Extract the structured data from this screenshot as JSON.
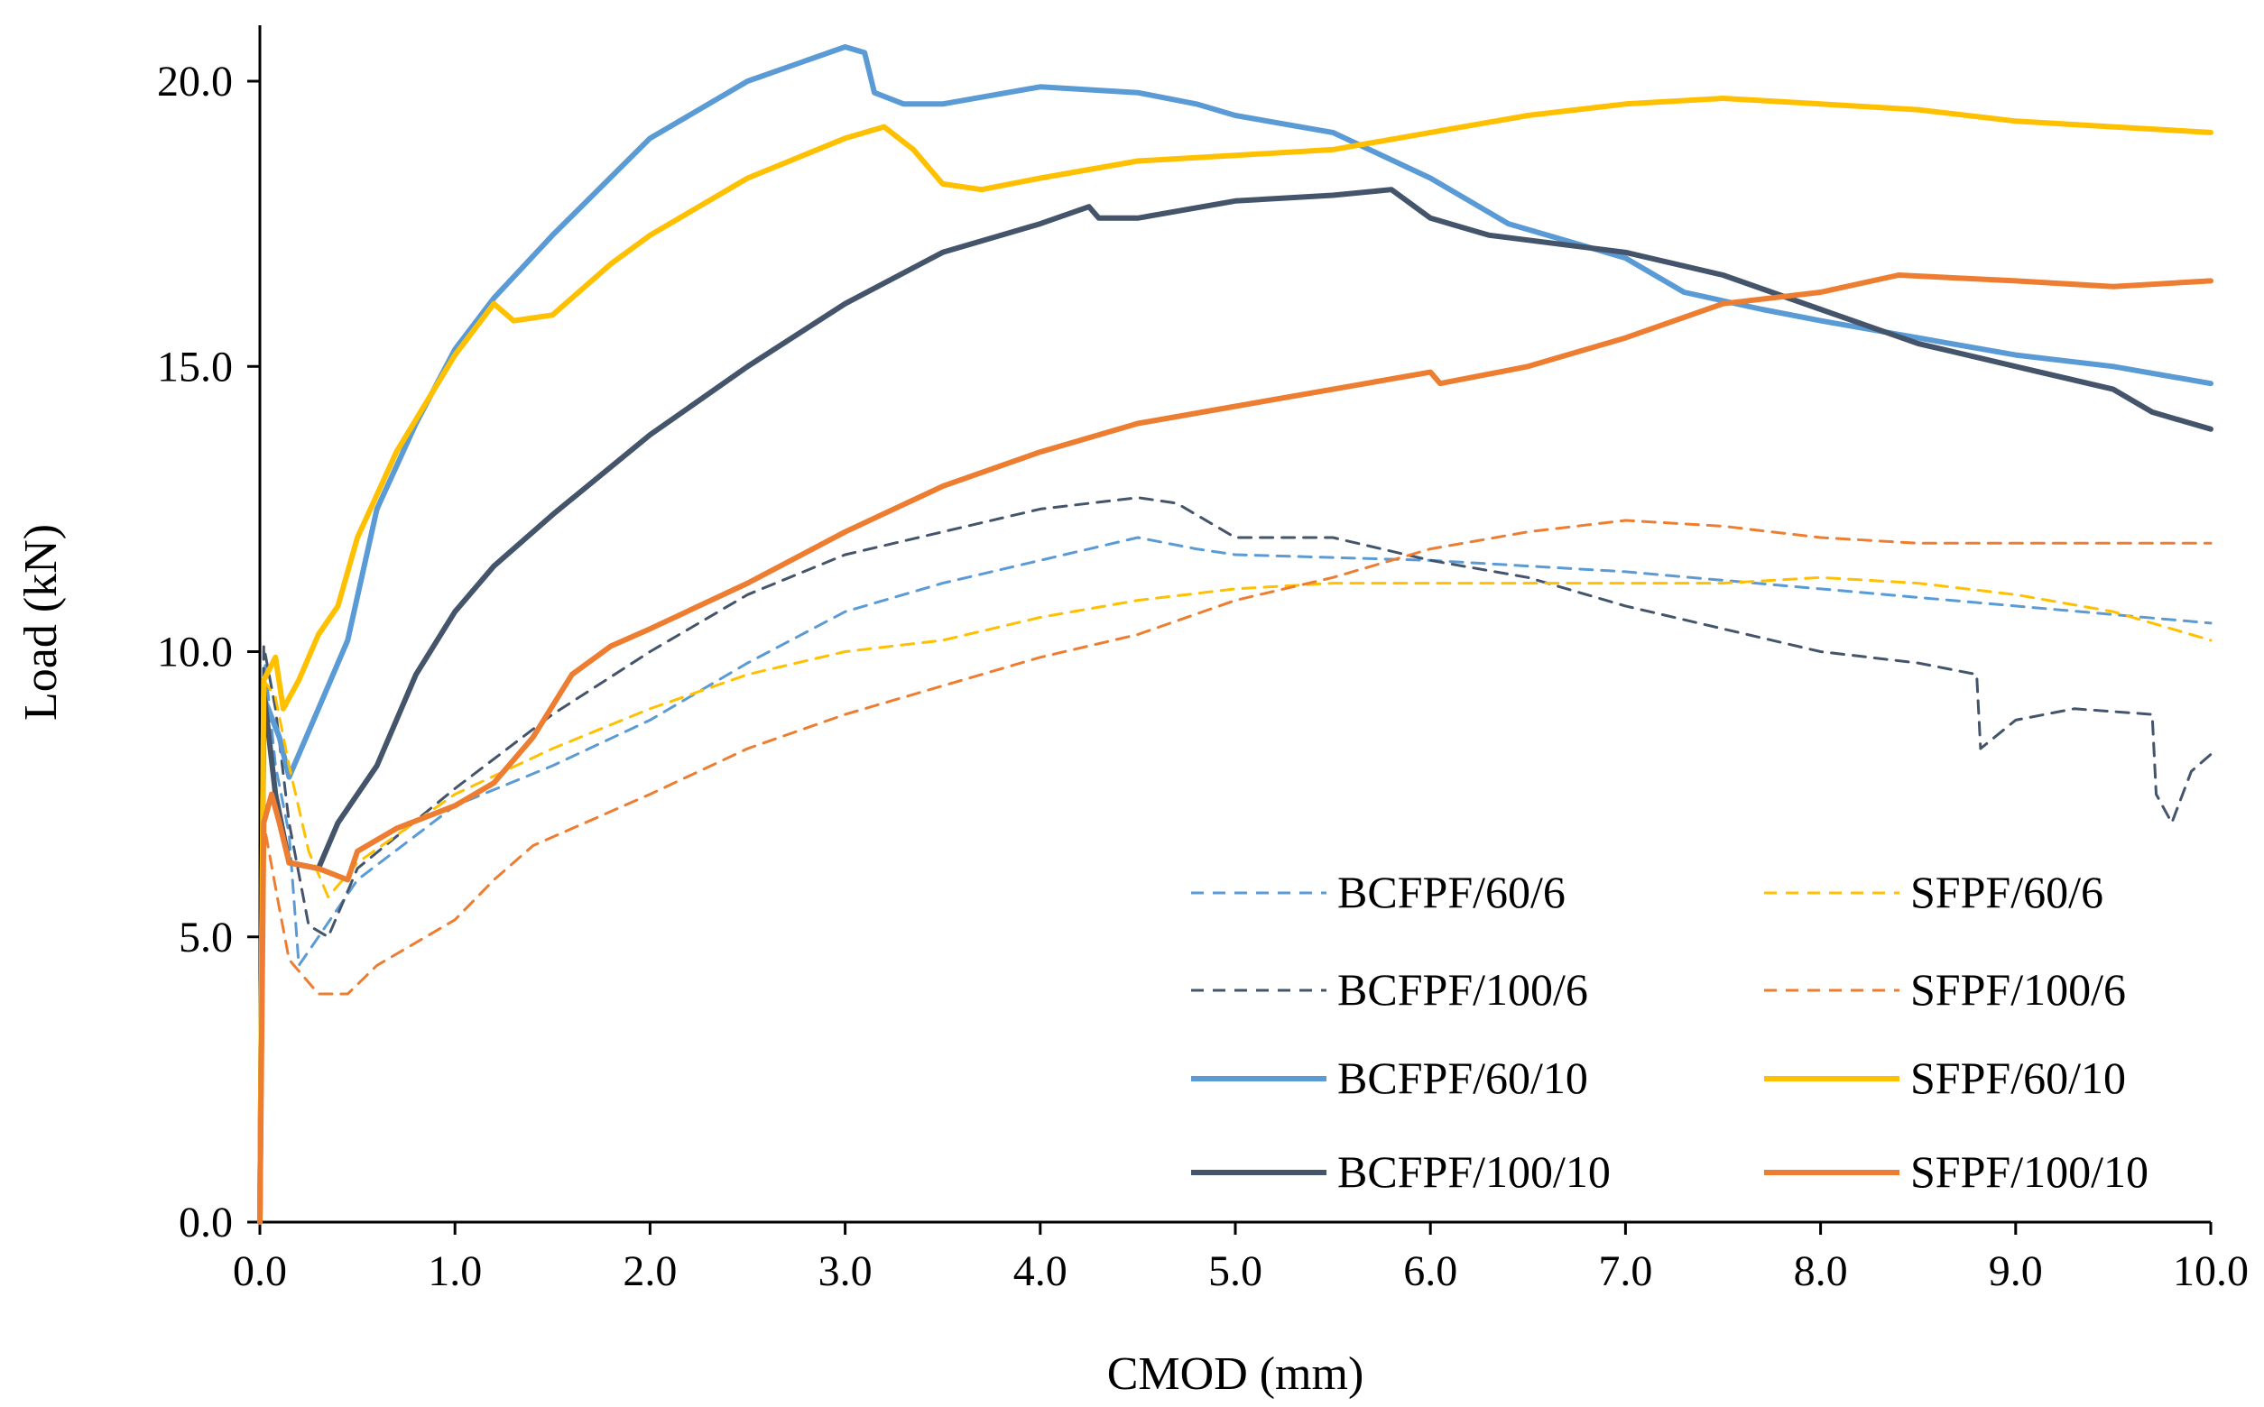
{
  "chart_data": {
    "type": "line",
    "title": "",
    "xlabel": "CMOD (mm)",
    "ylabel": "Load (kN)",
    "xlim": [
      0,
      10
    ],
    "ylim": [
      0,
      20
    ],
    "x_ticks": [
      "0.0",
      "1.0",
      "2.0",
      "3.0",
      "4.0",
      "5.0",
      "6.0",
      "7.0",
      "8.0",
      "9.0",
      "10.0"
    ],
    "y_ticks": [
      "0.0",
      "5.0",
      "10.0",
      "15.0",
      "20.0"
    ],
    "grid": false,
    "legend_position": "bottom-right",
    "series": [
      {
        "name": "BCFPF/60/6",
        "color": "#5B9BD5",
        "style": "dashed",
        "points": [
          [
            0,
            0
          ],
          [
            0.02,
            10.0
          ],
          [
            0.08,
            8.0
          ],
          [
            0.15,
            6.8
          ],
          [
            0.2,
            4.5
          ],
          [
            0.3,
            5.0
          ],
          [
            0.5,
            6.0
          ],
          [
            1.0,
            7.3
          ],
          [
            1.5,
            8.0
          ],
          [
            2.0,
            8.8
          ],
          [
            2.5,
            9.8
          ],
          [
            3.0,
            10.7
          ],
          [
            3.5,
            11.2
          ],
          [
            4.0,
            11.6
          ],
          [
            4.5,
            12.0
          ],
          [
            4.8,
            11.8
          ],
          [
            5.0,
            11.7
          ],
          [
            6.0,
            11.6
          ],
          [
            7.0,
            11.4
          ],
          [
            8.0,
            11.1
          ],
          [
            9.0,
            10.8
          ],
          [
            10.0,
            10.5
          ]
        ]
      },
      {
        "name": "BCFPF/100/6",
        "color": "#44546A",
        "style": "dashed",
        "points": [
          [
            0,
            0
          ],
          [
            0.02,
            10.1
          ],
          [
            0.08,
            9.0
          ],
          [
            0.15,
            7.0
          ],
          [
            0.25,
            5.2
          ],
          [
            0.35,
            5.0
          ],
          [
            0.5,
            6.2
          ],
          [
            1.0,
            7.6
          ],
          [
            1.5,
            8.9
          ],
          [
            2.0,
            10.0
          ],
          [
            2.5,
            11.0
          ],
          [
            3.0,
            11.7
          ],
          [
            3.5,
            12.1
          ],
          [
            4.0,
            12.5
          ],
          [
            4.5,
            12.7
          ],
          [
            4.7,
            12.6
          ],
          [
            5.0,
            12.0
          ],
          [
            5.5,
            12.0
          ],
          [
            6.0,
            11.6
          ],
          [
            6.5,
            11.3
          ],
          [
            7.0,
            10.8
          ],
          [
            7.5,
            10.4
          ],
          [
            8.0,
            10.0
          ],
          [
            8.5,
            9.8
          ],
          [
            8.8,
            9.6
          ],
          [
            8.82,
            8.3
          ],
          [
            9.0,
            8.8
          ],
          [
            9.3,
            9.0
          ],
          [
            9.7,
            8.9
          ],
          [
            9.72,
            7.5
          ],
          [
            9.8,
            7.0
          ],
          [
            9.9,
            7.9
          ],
          [
            10.0,
            8.2
          ]
        ]
      },
      {
        "name": "BCFPF/60/10",
        "color": "#5B9BD5",
        "style": "solid",
        "points": [
          [
            0,
            0
          ],
          [
            0.02,
            9.2
          ],
          [
            0.1,
            8.5
          ],
          [
            0.15,
            7.8
          ],
          [
            0.3,
            9.0
          ],
          [
            0.45,
            10.2
          ],
          [
            0.6,
            12.5
          ],
          [
            0.8,
            14.0
          ],
          [
            1.0,
            15.3
          ],
          [
            1.2,
            16.2
          ],
          [
            1.5,
            17.3
          ],
          [
            2.0,
            19.0
          ],
          [
            2.5,
            20.0
          ],
          [
            3.0,
            20.6
          ],
          [
            3.1,
            20.5
          ],
          [
            3.15,
            19.8
          ],
          [
            3.3,
            19.6
          ],
          [
            3.5,
            19.6
          ],
          [
            4.0,
            19.9
          ],
          [
            4.5,
            19.8
          ],
          [
            4.8,
            19.6
          ],
          [
            5.0,
            19.4
          ],
          [
            5.5,
            19.1
          ],
          [
            6.0,
            18.3
          ],
          [
            6.4,
            17.5
          ],
          [
            7.0,
            16.9
          ],
          [
            7.3,
            16.3
          ],
          [
            7.7,
            16.0
          ],
          [
            8.0,
            15.8
          ],
          [
            8.5,
            15.5
          ],
          [
            9.0,
            15.2
          ],
          [
            9.5,
            15.0
          ],
          [
            10.0,
            14.7
          ]
        ]
      },
      {
        "name": "BCFPF/100/10",
        "color": "#44546A",
        "style": "solid",
        "points": [
          [
            0,
            0
          ],
          [
            0.02,
            9.3
          ],
          [
            0.08,
            7.5
          ],
          [
            0.15,
            6.3
          ],
          [
            0.3,
            6.2
          ],
          [
            0.4,
            7.0
          ],
          [
            0.6,
            8.0
          ],
          [
            0.8,
            9.6
          ],
          [
            1.0,
            10.7
          ],
          [
            1.2,
            11.5
          ],
          [
            1.5,
            12.4
          ],
          [
            2.0,
            13.8
          ],
          [
            2.5,
            15.0
          ],
          [
            3.0,
            16.1
          ],
          [
            3.5,
            17.0
          ],
          [
            4.0,
            17.5
          ],
          [
            4.25,
            17.8
          ],
          [
            4.3,
            17.6
          ],
          [
            4.5,
            17.6
          ],
          [
            5.0,
            17.9
          ],
          [
            5.5,
            18.0
          ],
          [
            5.8,
            18.1
          ],
          [
            6.0,
            17.6
          ],
          [
            6.3,
            17.3
          ],
          [
            7.0,
            17.0
          ],
          [
            7.5,
            16.6
          ],
          [
            8.0,
            16.0
          ],
          [
            8.5,
            15.4
          ],
          [
            9.0,
            15.0
          ],
          [
            9.5,
            14.6
          ],
          [
            9.7,
            14.2
          ],
          [
            10.0,
            13.9
          ]
        ]
      },
      {
        "name": "SFPF/60/6",
        "color": "#FFC000",
        "style": "dashed",
        "points": [
          [
            0,
            0
          ],
          [
            0.02,
            9.5
          ],
          [
            0.08,
            9.2
          ],
          [
            0.15,
            8.0
          ],
          [
            0.25,
            6.5
          ],
          [
            0.35,
            5.7
          ],
          [
            0.5,
            6.3
          ],
          [
            1.0,
            7.5
          ],
          [
            1.5,
            8.3
          ],
          [
            2.0,
            9.0
          ],
          [
            2.5,
            9.6
          ],
          [
            3.0,
            10.0
          ],
          [
            3.5,
            10.2
          ],
          [
            4.0,
            10.6
          ],
          [
            4.5,
            10.9
          ],
          [
            5.0,
            11.1
          ],
          [
            5.5,
            11.2
          ],
          [
            6.0,
            11.2
          ],
          [
            6.5,
            11.2
          ],
          [
            7.0,
            11.2
          ],
          [
            7.5,
            11.2
          ],
          [
            8.0,
            11.3
          ],
          [
            8.5,
            11.2
          ],
          [
            9.0,
            11.0
          ],
          [
            9.5,
            10.7
          ],
          [
            10.0,
            10.2
          ]
        ]
      },
      {
        "name": "SFPF/100/6",
        "color": "#ED7D31",
        "style": "dashed",
        "points": [
          [
            0,
            0
          ],
          [
            0.02,
            7.0
          ],
          [
            0.1,
            5.5
          ],
          [
            0.15,
            4.6
          ],
          [
            0.3,
            4.0
          ],
          [
            0.45,
            4.0
          ],
          [
            0.6,
            4.5
          ],
          [
            1.0,
            5.3
          ],
          [
            1.2,
            6.0
          ],
          [
            1.4,
            6.6
          ],
          [
            2.0,
            7.5
          ],
          [
            2.5,
            8.3
          ],
          [
            3.0,
            8.9
          ],
          [
            3.5,
            9.4
          ],
          [
            4.0,
            9.9
          ],
          [
            4.5,
            10.3
          ],
          [
            5.0,
            10.9
          ],
          [
            5.5,
            11.3
          ],
          [
            6.0,
            11.8
          ],
          [
            6.5,
            12.1
          ],
          [
            7.0,
            12.3
          ],
          [
            7.5,
            12.2
          ],
          [
            8.0,
            12.0
          ],
          [
            8.5,
            11.9
          ],
          [
            9.0,
            11.9
          ],
          [
            9.5,
            11.9
          ],
          [
            10.0,
            11.9
          ]
        ]
      },
      {
        "name": "SFPF/60/10",
        "color": "#FFC000",
        "style": "solid",
        "points": [
          [
            0,
            0
          ],
          [
            0.02,
            9.5
          ],
          [
            0.08,
            9.9
          ],
          [
            0.12,
            9.0
          ],
          [
            0.2,
            9.5
          ],
          [
            0.3,
            10.3
          ],
          [
            0.4,
            10.8
          ],
          [
            0.5,
            12.0
          ],
          [
            0.7,
            13.5
          ],
          [
            1.0,
            15.2
          ],
          [
            1.2,
            16.1
          ],
          [
            1.3,
            15.8
          ],
          [
            1.5,
            15.9
          ],
          [
            1.8,
            16.8
          ],
          [
            2.0,
            17.3
          ],
          [
            2.5,
            18.3
          ],
          [
            3.0,
            19.0
          ],
          [
            3.2,
            19.2
          ],
          [
            3.35,
            18.8
          ],
          [
            3.5,
            18.2
          ],
          [
            3.7,
            18.1
          ],
          [
            4.0,
            18.3
          ],
          [
            4.5,
            18.6
          ],
          [
            5.0,
            18.7
          ],
          [
            5.5,
            18.8
          ],
          [
            6.0,
            19.1
          ],
          [
            6.5,
            19.4
          ],
          [
            7.0,
            19.6
          ],
          [
            7.5,
            19.7
          ],
          [
            8.0,
            19.6
          ],
          [
            8.5,
            19.5
          ],
          [
            9.0,
            19.3
          ],
          [
            9.5,
            19.2
          ],
          [
            10.0,
            19.1
          ]
        ]
      },
      {
        "name": "SFPF/100/10",
        "color": "#ED7D31",
        "style": "solid",
        "points": [
          [
            0,
            0
          ],
          [
            0.02,
            7.0
          ],
          [
            0.06,
            7.5
          ],
          [
            0.1,
            7.0
          ],
          [
            0.15,
            6.3
          ],
          [
            0.3,
            6.2
          ],
          [
            0.45,
            6.0
          ],
          [
            0.5,
            6.5
          ],
          [
            0.7,
            6.9
          ],
          [
            1.0,
            7.3
          ],
          [
            1.2,
            7.7
          ],
          [
            1.4,
            8.5
          ],
          [
            1.6,
            9.6
          ],
          [
            1.8,
            10.1
          ],
          [
            2.0,
            10.4
          ],
          [
            2.5,
            11.2
          ],
          [
            3.0,
            12.1
          ],
          [
            3.5,
            12.9
          ],
          [
            4.0,
            13.5
          ],
          [
            4.5,
            14.0
          ],
          [
            5.0,
            14.3
          ],
          [
            5.5,
            14.6
          ],
          [
            6.0,
            14.9
          ],
          [
            6.05,
            14.7
          ],
          [
            6.5,
            15.0
          ],
          [
            7.0,
            15.5
          ],
          [
            7.5,
            16.1
          ],
          [
            8.0,
            16.3
          ],
          [
            8.4,
            16.6
          ],
          [
            9.0,
            16.5
          ],
          [
            9.5,
            16.4
          ],
          [
            10.0,
            16.5
          ]
        ]
      }
    ]
  }
}
